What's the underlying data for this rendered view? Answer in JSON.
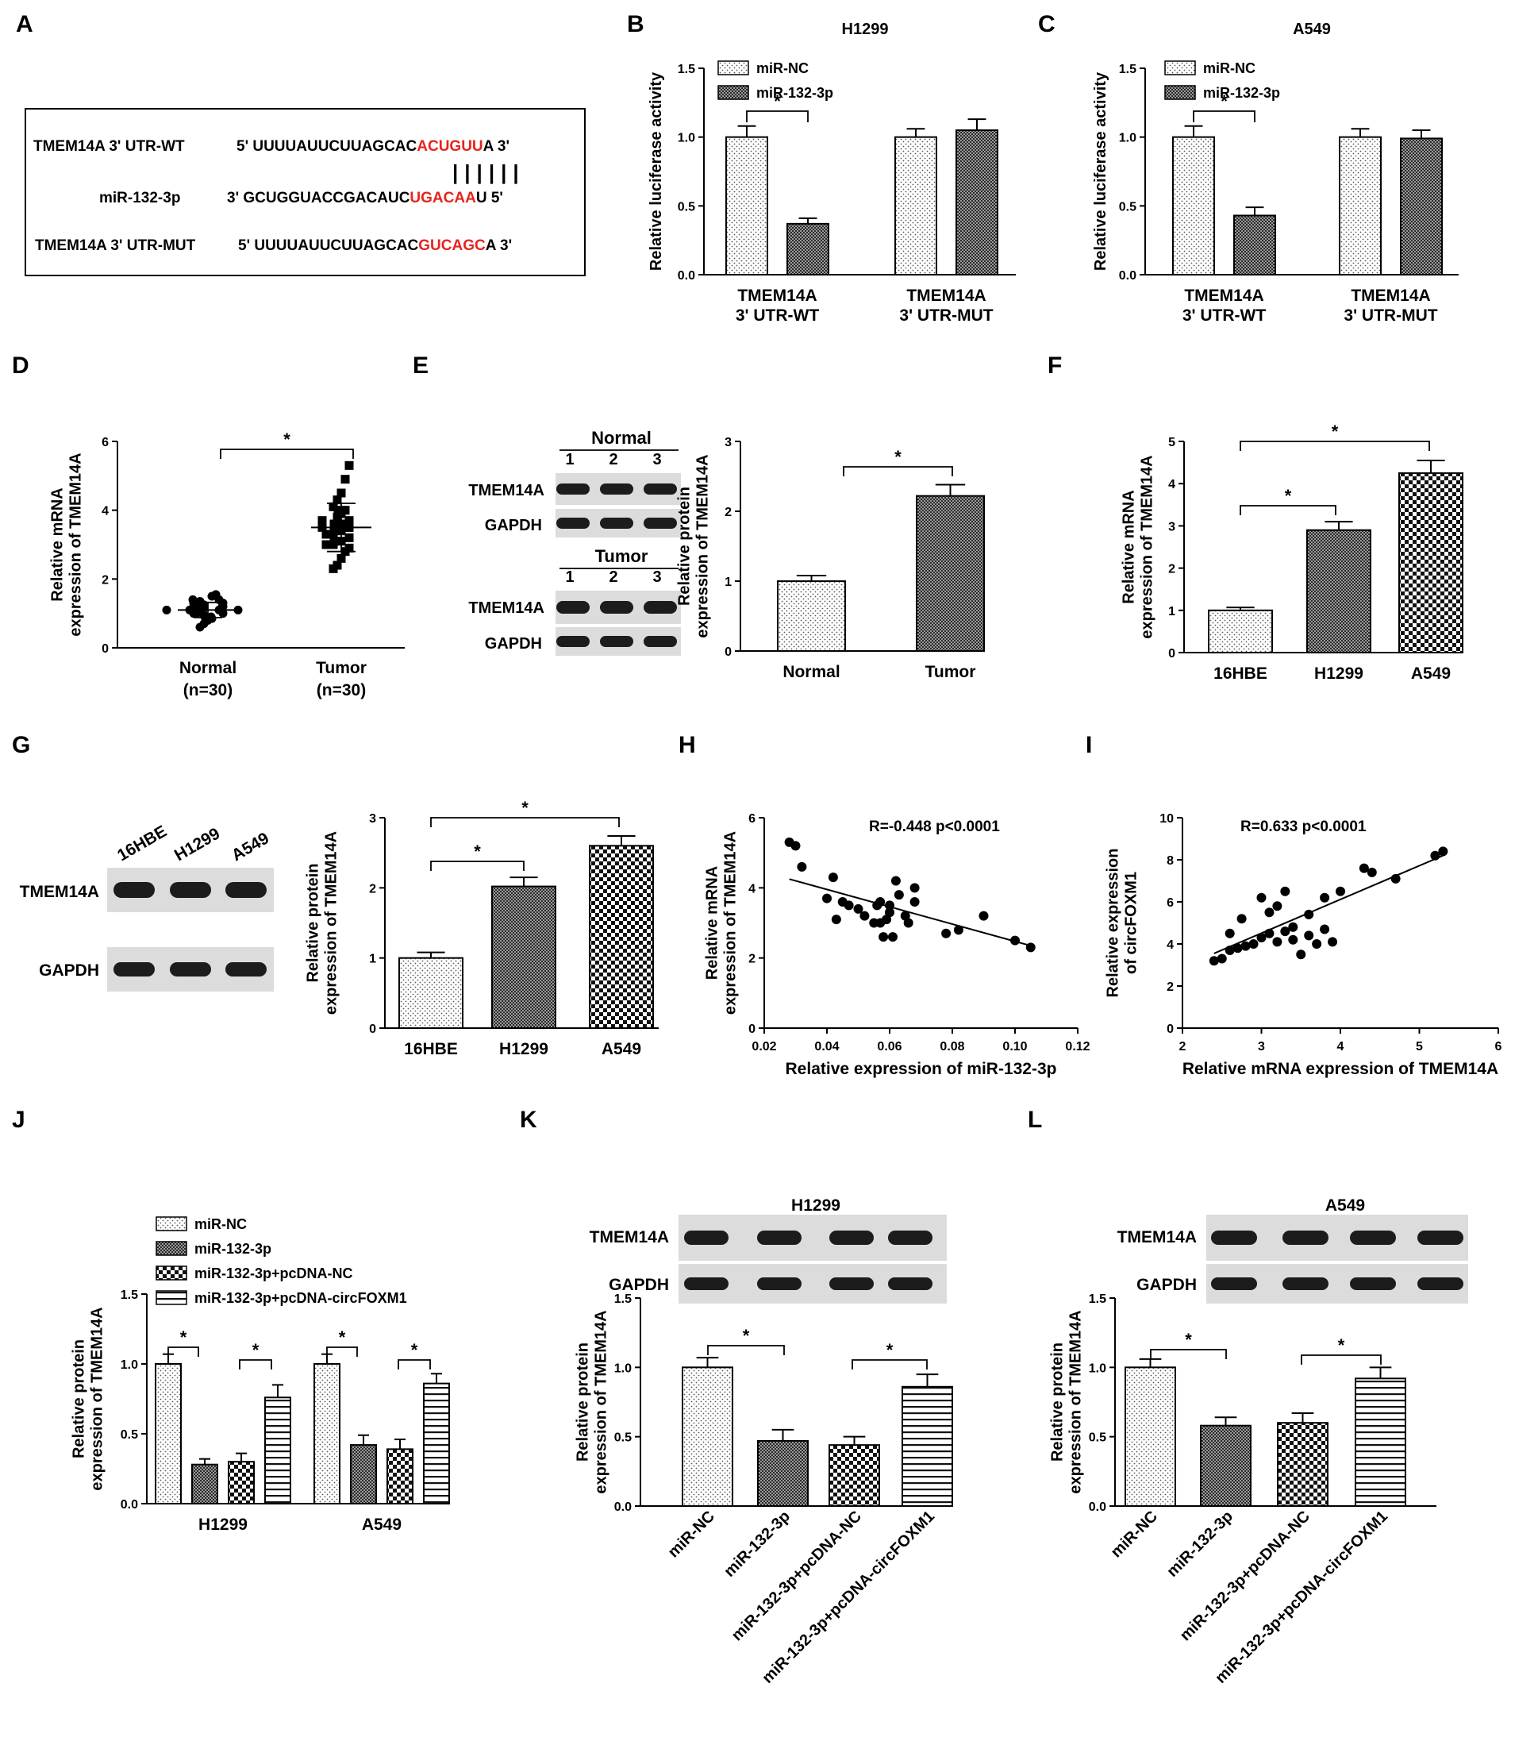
{
  "labels": {
    "A": "A",
    "B": "B",
    "C": "C",
    "D": "D",
    "E": "E",
    "F": "F",
    "G": "G",
    "H": "H",
    "I": "I",
    "J": "J",
    "K": "K",
    "L": "L"
  },
  "colors": {
    "ink": "#000000",
    "highlight": "#e8231c",
    "blot": "#dcdcdc",
    "band": "#1c1c1c"
  },
  "sequence": {
    "wt_name": "TMEM14A 3' UTR-WT",
    "wt_pre": "5' UUUUAUUCUUAGCAC",
    "wt_site": "ACUGUU",
    "wt_post": "A 3'",
    "bars": "||||||",
    "mir_name": "miR-132-3p",
    "mir_pre": "3' GCUGGUACCGACAUC",
    "mir_site": "UGACAA",
    "mir_post": "U 5'",
    "mut_name": "TMEM14A 3' UTR-MUT",
    "mut_pre": "5' UUUUAUUCUUAGCAC",
    "mut_site": "GUCAGC",
    "mut_post": "A 3'"
  },
  "blots": {
    "E": {
      "group1": "Normal",
      "group2": "Tumor",
      "lanes": [
        "1",
        "2",
        "3"
      ],
      "row1": "TMEM14A",
      "row2": "GAPDH"
    },
    "G": {
      "lanes": [
        "16HBE",
        "H1299",
        "A549"
      ],
      "row1": "TMEM14A",
      "row2": "GAPDH"
    },
    "K": {
      "title": "H1299",
      "row1": "TMEM14A",
      "row2": "GAPDH"
    },
    "L": {
      "title": "A549",
      "row1": "TMEM14A",
      "row2": "GAPDH"
    }
  },
  "chart_data": [
    {
      "id": "B",
      "type": "bar",
      "title": "H1299",
      "ylabel": "Relative luciferase activity",
      "ylim": [
        0,
        1.5
      ],
      "yticks": [
        "0.0",
        "0.5",
        "1.0",
        "1.5"
      ],
      "categories": [
        "TMEM14A\n3' UTR-WT",
        "TMEM14A\n3' UTR-MUT"
      ],
      "series": [
        {
          "name": "miR-NC",
          "values": [
            1.0,
            1.0
          ],
          "errors": [
            0.08,
            0.06
          ]
        },
        {
          "name": "miR-132-3p",
          "values": [
            0.37,
            1.05
          ],
          "errors": [
            0.04,
            0.08
          ]
        }
      ],
      "annotations": [
        "*"
      ],
      "legend": "top-left"
    },
    {
      "id": "C",
      "type": "bar",
      "title": "A549",
      "ylabel": "Relative luciferase activity",
      "ylim": [
        0,
        1.5
      ],
      "yticks": [
        "0.0",
        "0.5",
        "1.0",
        "1.5"
      ],
      "categories": [
        "TMEM14A\n3' UTR-WT",
        "TMEM14A\n3' UTR-MUT"
      ],
      "series": [
        {
          "name": "miR-NC",
          "values": [
            1.0,
            1.0
          ],
          "errors": [
            0.08,
            0.06
          ]
        },
        {
          "name": "miR-132-3p",
          "values": [
            0.43,
            0.99
          ],
          "errors": [
            0.06,
            0.06
          ]
        }
      ],
      "annotations": [
        "*"
      ],
      "legend": "top-left"
    },
    {
      "id": "D",
      "type": "scatter",
      "ylabel": "Relative mRNA\nexpression of TMEM14A",
      "ylim": [
        0,
        6
      ],
      "yticks": [
        "0",
        "2",
        "4",
        "6"
      ],
      "categories": [
        "Normal\n(n=30)",
        "Tumor\n(n=30)"
      ],
      "groups": [
        {
          "name": "Normal",
          "mean": 1.1,
          "sd": 0.22,
          "values": [
            0.6,
            0.7,
            0.8,
            0.85,
            0.9,
            0.9,
            0.95,
            1.0,
            1.0,
            1.0,
            1.05,
            1.05,
            1.1,
            1.1,
            1.1,
            1.1,
            1.15,
            1.15,
            1.2,
            1.2,
            1.2,
            1.25,
            1.25,
            1.3,
            1.3,
            1.35,
            1.4,
            1.4,
            1.5,
            1.55
          ]
        },
        {
          "name": "Tumor",
          "mean": 3.5,
          "sd": 0.7,
          "values": [
            2.3,
            2.4,
            2.6,
            2.8,
            2.9,
            3.0,
            3.0,
            3.1,
            3.1,
            3.2,
            3.3,
            3.3,
            3.4,
            3.4,
            3.5,
            3.5,
            3.5,
            3.6,
            3.6,
            3.7,
            3.7,
            3.8,
            3.9,
            4.0,
            4.0,
            4.1,
            4.3,
            4.5,
            4.9,
            5.3
          ]
        }
      ],
      "annotations": [
        "*"
      ]
    },
    {
      "id": "E",
      "type": "bar",
      "ylabel": "Relative protein\nexpression of TMEM14A",
      "ylim": [
        0,
        3
      ],
      "yticks": [
        "0",
        "1",
        "2",
        "3"
      ],
      "categories": [
        "Normal",
        "Tumor"
      ],
      "values": [
        1.0,
        2.22
      ],
      "errors": [
        0.08,
        0.16
      ],
      "annotations": [
        "*"
      ]
    },
    {
      "id": "F",
      "type": "bar",
      "ylabel": "Relative mRNA\nexpression of TMEM14A",
      "ylim": [
        0,
        5
      ],
      "yticks": [
        "0",
        "1",
        "2",
        "3",
        "4",
        "5"
      ],
      "categories": [
        "16HBE",
        "H1299",
        "A549"
      ],
      "values": [
        1.0,
        2.9,
        4.25
      ],
      "errors": [
        0.07,
        0.2,
        0.3
      ],
      "annotations": [
        "*",
        "*"
      ]
    },
    {
      "id": "G",
      "type": "bar",
      "ylabel": "Relative protein\nexpression of TMEM14A",
      "ylim": [
        0,
        3
      ],
      "yticks": [
        "0",
        "1",
        "2",
        "3"
      ],
      "categories": [
        "16HBE",
        "H1299",
        "A549"
      ],
      "values": [
        1.0,
        2.02,
        2.6
      ],
      "errors": [
        0.08,
        0.13,
        0.14
      ],
      "annotations": [
        "*",
        "*"
      ]
    },
    {
      "id": "H",
      "type": "scatter",
      "annotation": "R=-0.448  p<0.0001",
      "xlabel": "Relative expression of miR-132-3p",
      "ylabel": "Relative mRNA\nexpression of TMEM14A",
      "xlim": [
        0.02,
        0.12
      ],
      "ylim": [
        0,
        6
      ],
      "xticks": [
        "0.02",
        "0.04",
        "0.06",
        "0.08",
        "0.10",
        "0.12"
      ],
      "yticks": [
        "0",
        "2",
        "4",
        "6"
      ],
      "x": [
        0.028,
        0.03,
        0.032,
        0.04,
        0.042,
        0.043,
        0.045,
        0.047,
        0.05,
        0.052,
        0.055,
        0.056,
        0.057,
        0.058,
        0.059,
        0.06,
        0.06,
        0.061,
        0.062,
        0.063,
        0.065,
        0.066,
        0.068,
        0.068,
        0.078,
        0.082,
        0.09,
        0.1,
        0.105,
        0.057
      ],
      "y": [
        5.3,
        5.2,
        4.6,
        3.7,
        4.3,
        3.1,
        3.6,
        3.5,
        3.4,
        3.2,
        3.0,
        3.5,
        3.6,
        2.6,
        3.1,
        3.3,
        3.5,
        2.6,
        4.2,
        3.8,
        3.2,
        3.0,
        3.6,
        4.0,
        2.7,
        2.8,
        3.2,
        2.5,
        2.3,
        3.0
      ],
      "fit": {
        "x": [
          0.028,
          0.105
        ],
        "y": [
          4.25,
          2.35
        ]
      }
    },
    {
      "id": "I",
      "type": "scatter",
      "annotation": "R=0.633  p<0.0001",
      "xlabel": "Relative mRNA expression of TMEM14A",
      "ylabel": "Relative expression\nof circFOXM1",
      "xlim": [
        2,
        6
      ],
      "ylim": [
        0,
        10
      ],
      "xticks": [
        "2",
        "3",
        "4",
        "5",
        "6"
      ],
      "yticks": [
        "0",
        "2",
        "4",
        "6",
        "8",
        "10"
      ],
      "x": [
        2.4,
        2.5,
        2.6,
        2.6,
        2.7,
        2.75,
        2.8,
        2.9,
        3.0,
        3.0,
        3.1,
        3.1,
        3.2,
        3.2,
        3.3,
        3.3,
        3.4,
        3.4,
        3.5,
        3.6,
        3.6,
        3.7,
        3.8,
        3.8,
        3.9,
        4.0,
        4.3,
        4.4,
        4.7,
        5.2,
        5.3
      ],
      "y": [
        3.2,
        3.3,
        4.5,
        3.7,
        3.8,
        5.2,
        3.9,
        4.0,
        6.2,
        4.3,
        5.5,
        4.5,
        5.8,
        4.1,
        6.5,
        4.6,
        4.2,
        4.8,
        3.5,
        5.4,
        4.4,
        4.0,
        6.2,
        4.7,
        4.1,
        6.5,
        7.6,
        7.4,
        7.1,
        8.2,
        8.4
      ],
      "fit": {
        "x": [
          2.4,
          5.3
        ],
        "y": [
          3.55,
          8.2
        ]
      }
    },
    {
      "id": "J",
      "type": "bar",
      "ylabel": "Relative protein\nexpression of TMEM14A",
      "ylim": [
        0,
        1.5
      ],
      "yticks": [
        "0.0",
        "0.5",
        "1.0",
        "1.5"
      ],
      "categories": [
        "H1299",
        "A549"
      ],
      "series": [
        {
          "name": "miR-NC",
          "values": [
            1.0,
            1.0
          ],
          "errors": [
            0.07,
            0.07
          ]
        },
        {
          "name": "miR-132-3p",
          "values": [
            0.28,
            0.42
          ],
          "errors": [
            0.04,
            0.07
          ]
        },
        {
          "name": "miR-132-3p+pcDNA-NC",
          "values": [
            0.3,
            0.39
          ],
          "errors": [
            0.06,
            0.07
          ]
        },
        {
          "name": "miR-132-3p+pcDNA-circFOXM1",
          "values": [
            0.76,
            0.86
          ],
          "errors": [
            0.09,
            0.07
          ]
        }
      ],
      "annotations": [
        "*",
        "*",
        "*",
        "*"
      ],
      "legend": "top"
    },
    {
      "id": "K",
      "type": "bar",
      "ylabel": "Relative protein\nexpression of TMEM14A",
      "ylim": [
        0,
        1.5
      ],
      "yticks": [
        "0.0",
        "0.5",
        "1.0",
        "1.5"
      ],
      "categories": [
        "miR-NC",
        "miR-132-3p",
        "miR-132-3p+pcDNA-NC",
        "miR-132-3p+pcDNA-circFOXM1"
      ],
      "values": [
        1.0,
        0.47,
        0.44,
        0.86
      ],
      "errors": [
        0.07,
        0.08,
        0.06,
        0.09
      ],
      "annotations": [
        "*",
        "*"
      ]
    },
    {
      "id": "L",
      "type": "bar",
      "ylabel": "Relative protein\nexpression of TMEM14A",
      "ylim": [
        0,
        1.5
      ],
      "yticks": [
        "0.0",
        "0.5",
        "1.0",
        "1.5"
      ],
      "categories": [
        "miR-NC",
        "miR-132-3p",
        "miR-132-3p+pcDNA-NC",
        "miR-132-3p+pcDNA-circFOXM1"
      ],
      "values": [
        1.0,
        0.58,
        0.6,
        0.92
      ],
      "errors": [
        0.06,
        0.06,
        0.07,
        0.08
      ],
      "annotations": [
        "*",
        "*"
      ]
    }
  ]
}
